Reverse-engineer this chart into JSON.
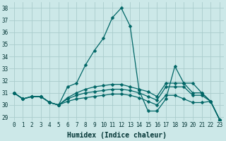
{
  "xlabel": "Humidex (Indice chaleur)",
  "background_color": "#cce8e8",
  "grid_color": "#aacccc",
  "line_color": "#006666",
  "xlim": [
    -0.5,
    23.5
  ],
  "ylim": [
    28.7,
    38.5
  ],
  "yticks": [
    29,
    30,
    31,
    32,
    33,
    34,
    35,
    36,
    37,
    38
  ],
  "xticks": [
    0,
    1,
    2,
    3,
    4,
    5,
    6,
    7,
    8,
    9,
    10,
    11,
    12,
    13,
    14,
    15,
    16,
    17,
    18,
    19,
    20,
    21,
    22,
    23
  ],
  "series": [
    [
      31.0,
      30.5,
      30.7,
      30.7,
      30.2,
      30.0,
      31.5,
      31.8,
      33.3,
      34.5,
      35.5,
      37.2,
      38.0,
      36.5,
      31.2,
      29.5,
      29.5,
      30.5,
      33.2,
      31.8,
      31.8,
      31.0,
      30.3,
      28.8
    ],
    [
      31.0,
      30.5,
      30.7,
      30.7,
      30.2,
      30.0,
      30.6,
      31.0,
      31.3,
      31.5,
      31.6,
      31.7,
      31.7,
      31.5,
      31.3,
      31.1,
      30.7,
      31.8,
      31.8,
      31.8,
      31.0,
      31.0,
      30.3,
      28.8
    ],
    [
      31.0,
      30.5,
      30.7,
      30.7,
      30.2,
      30.0,
      30.5,
      30.8,
      31.0,
      31.1,
      31.2,
      31.3,
      31.3,
      31.2,
      31.0,
      30.7,
      30.4,
      31.5,
      31.5,
      31.5,
      30.8,
      30.8,
      30.3,
      28.8
    ],
    [
      31.0,
      30.5,
      30.7,
      30.7,
      30.2,
      30.0,
      30.3,
      30.5,
      30.6,
      30.7,
      30.8,
      30.9,
      30.9,
      30.8,
      30.6,
      30.3,
      30.0,
      30.8,
      30.8,
      30.5,
      30.2,
      30.2,
      30.3,
      28.8
    ]
  ],
  "marker": "D",
  "marker_size": 2.5,
  "linewidth": 0.9,
  "tick_fontsize": 5.5,
  "xlabel_fontsize": 7
}
